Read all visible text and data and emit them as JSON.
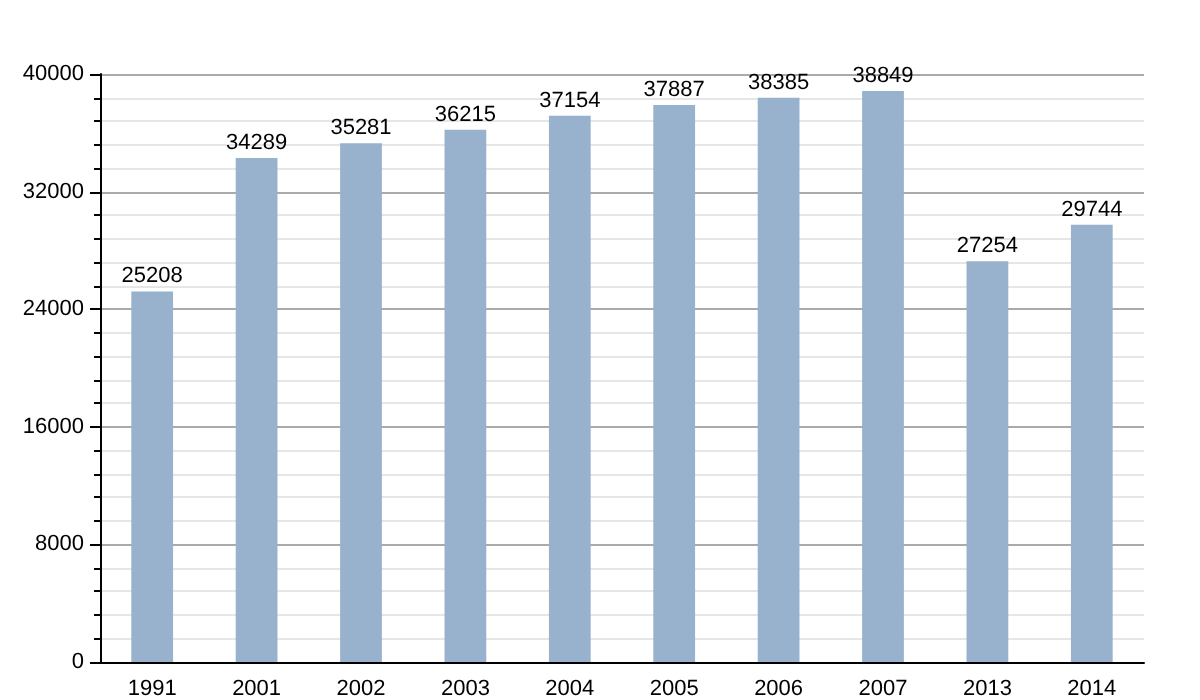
{
  "chart_data": {
    "type": "bar",
    "categories": [
      "1991",
      "2001",
      "2002",
      "2003",
      "2004",
      "2005",
      "2006",
      "2007",
      "2013",
      "2014"
    ],
    "values": [
      25208,
      34289,
      35281,
      36215,
      37154,
      37887,
      38385,
      38849,
      27254,
      29744
    ],
    "color": "#98b1cc",
    "ylim": [
      0,
      40000
    ],
    "yticks": [
      0,
      8000,
      16000,
      24000,
      32000,
      40000
    ],
    "grid": "y",
    "data_labels": true
  }
}
